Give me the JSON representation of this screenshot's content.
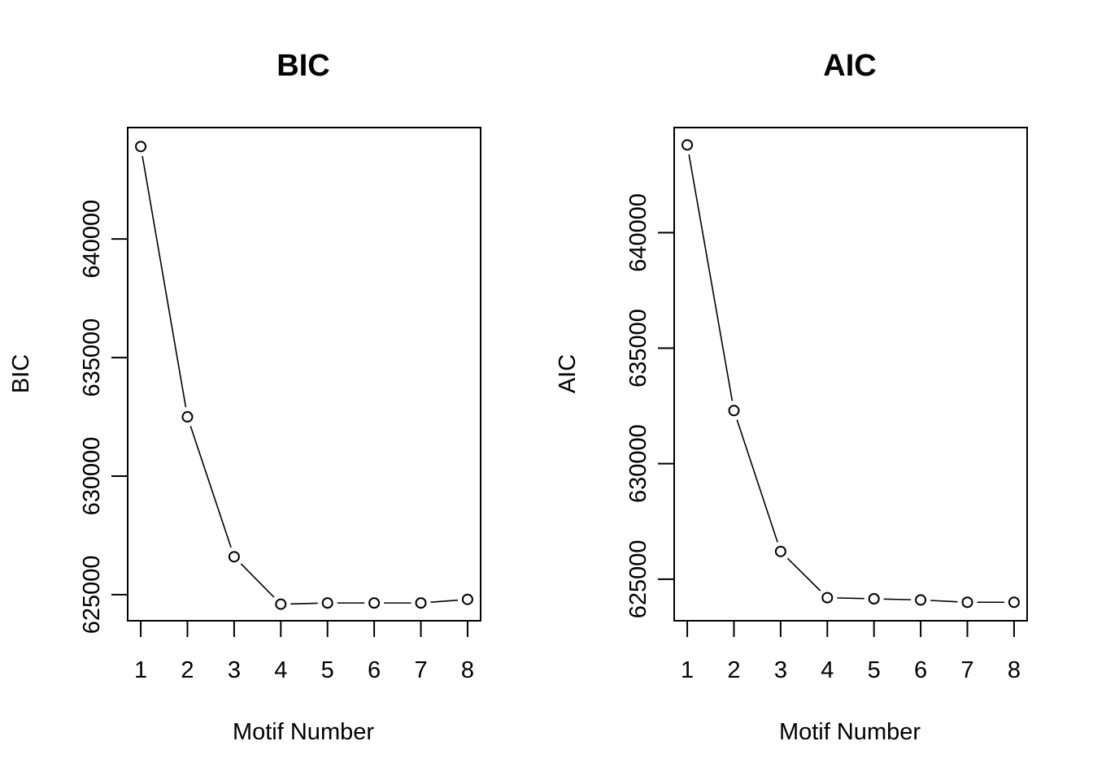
{
  "chart_data": [
    {
      "type": "line",
      "title": "BIC",
      "xlabel": "Motif Number",
      "ylabel": "BIC",
      "x": [
        1,
        2,
        3,
        4,
        5,
        6,
        7,
        8
      ],
      "y_ticks": [
        625000,
        630000,
        635000,
        640000
      ],
      "x_ticks": [
        1,
        2,
        3,
        4,
        5,
        6,
        7,
        8
      ],
      "ylim": [
        623900,
        644700
      ],
      "xlim": [
        0.72,
        8.28
      ],
      "series": [
        {
          "values": [
            643900,
            632500,
            626600,
            624600,
            624650,
            624650,
            624650,
            624800
          ]
        }
      ],
      "marker": "open-circle",
      "grid": false
    },
    {
      "type": "line",
      "title": "AIC",
      "xlabel": "Motif Number",
      "ylabel": "AIC",
      "x": [
        1,
        2,
        3,
        4,
        5,
        6,
        7,
        8
      ],
      "y_ticks": [
        625000,
        630000,
        635000,
        640000
      ],
      "x_ticks": [
        1,
        2,
        3,
        4,
        5,
        6,
        7,
        8
      ],
      "ylim": [
        623200,
        644550
      ],
      "xlim": [
        0.72,
        8.28
      ],
      "series": [
        {
          "values": [
            643800,
            632300,
            626200,
            624200,
            624150,
            624100,
            624000,
            624000
          ]
        }
      ],
      "marker": "open-circle",
      "grid": false
    }
  ]
}
